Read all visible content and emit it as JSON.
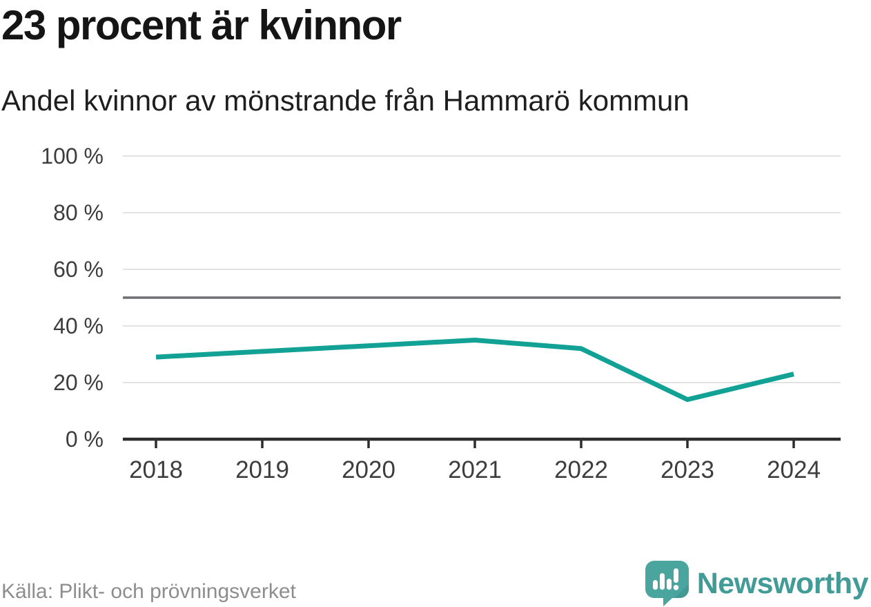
{
  "header": {
    "title": "23 procent är kvinnor",
    "subtitle": "Andel kvinnor av mönstrande från Hammarö kommun"
  },
  "chart_data": {
    "type": "line",
    "title": "Andel kvinnor av mönstrande från Hammarö kommun",
    "categories": [
      "2018",
      "2019",
      "2020",
      "2021",
      "2022",
      "2023",
      "2024"
    ],
    "series": [
      {
        "name": "Andel kvinnor av mönstrande",
        "values": [
          29,
          31,
          33,
          35,
          32,
          14,
          23
        ]
      }
    ],
    "unit": "%",
    "xlabel": "",
    "ylabel": "",
    "ylim": [
      0,
      100
    ],
    "yticks": [
      {
        "value": 0,
        "label": "0 %"
      },
      {
        "value": 20,
        "label": "20 %"
      },
      {
        "value": 40,
        "label": "40 %"
      },
      {
        "value": 60,
        "label": "60 %"
      },
      {
        "value": 80,
        "label": "80 %"
      },
      {
        "value": 100,
        "label": "100 %"
      }
    ],
    "reference_line": {
      "value": 50
    },
    "grid": true,
    "legend": false,
    "line_color": "#12a195"
  },
  "footer": {
    "source": "Källa: Plikt- och prövningsverket",
    "brand": "Newsworthy"
  },
  "colors": {
    "grid": "#e2e2e2",
    "reference": "#6f6f74",
    "axis": "#2d2d2d",
    "tick_text": "#3d3d3d",
    "source_text": "#8d8d8d",
    "brand_text": "#419b96",
    "logo_bubble": "#4aa59f",
    "logo_bubble_shade": "#3b908a",
    "logo_glyph": "#ffffff"
  }
}
